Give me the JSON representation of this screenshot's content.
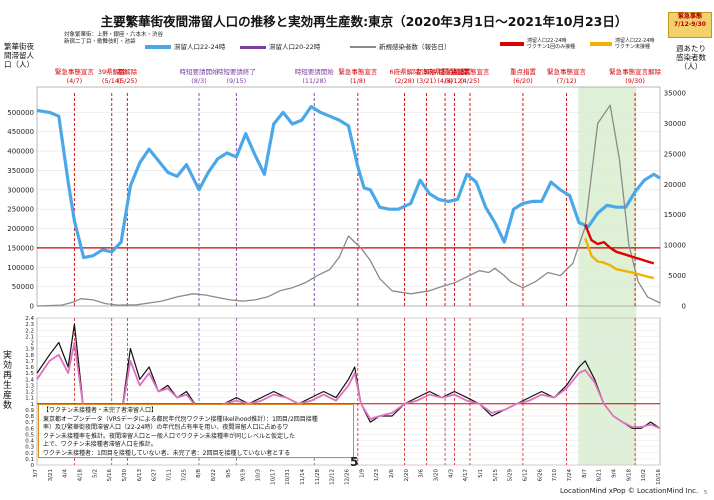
{
  "title": "主要繁華街夜間滞留人口の推移と実効再生産数:東京（2020年3月1日～2021年10月23日）",
  "area_note": [
    "対象繁華街：上野・銀座・六本木・渋谷",
    "新宿二丁目・歌舞伎町・池袋"
  ],
  "emergency_badge": [
    "緊急事態",
    "7/12-9/30"
  ],
  "legend": {
    "stay_22_24": "滞留人口22-24時",
    "stay_20_22": "滞留人口20-22時",
    "new_cases": "新規感染者数（報告日）",
    "unvax_stay": [
      "滞留人口22-24時",
      "ワクチン1回のみ接種"
    ],
    "unvax_stay2": [
      "滞留人口22-24時",
      "ワクチン未接種"
    ]
  },
  "left_axis_label": "繁華街夜間滞留人口（人）",
  "right_axis_label": "週あたり感染者数（人）",
  "rt_axis_label": "実効再生産数",
  "note_box": [
    "【ワクチン未接種者・未完了者滞留人口】",
    "東京都オープンデータ（VRSデータによる都民年代別ワクチン接種likelihood推計）：1回目/2回目接種",
    "率）及び繁華街夜間滞留人口（22-24時）の年代別占有率を用い、夜間滞留人口に占めるワ",
    "クチン未接種率を推計。夜間滞留人口と一般人口でワクチン未接種率が同じレベルと仮定した",
    "上で、ワクチン未接種者滞留人口を推計。",
    "ワクチン未接種者：1回目を接種していない者、未完了者：2回目を接種していない者とする"
  ],
  "slide_number": "5",
  "credit": "LocationMind xPop © LocationMind Inc.",
  "page_index": "5",
  "colors": {
    "stay_22_24": "#4aa8e8",
    "stay_20_22": "#7a3fa0",
    "cases": "#8a8a8a",
    "unvax1": "#e00000",
    "unvax2": "#f2b200",
    "rt_black": "#111111",
    "rt_pink": "#e070c0",
    "threshold": "#d00000",
    "emergency_shade": "#d8efcf"
  },
  "chart_data": [
    {
      "type": "line",
      "title": "主要繁華街夜間滞留人口の推移と実効再生産数:東京（2020年3月1日～2021年10月23日）",
      "x_start_label": "3/7",
      "x_end_label": "10/23",
      "xlabel": "",
      "ylabel": "繁華街夜間滞留人口（人）",
      "ylim": [
        0,
        550000
      ],
      "y_ticks": [
        0,
        50000,
        100000,
        150000,
        200000,
        250000,
        300000,
        350000,
        400000,
        450000,
        500000
      ],
      "y2label": "週あたり感染者数（人）",
      "y2lim": [
        0,
        35000
      ],
      "y2_ticks": [
        0,
        5000,
        10000,
        15000,
        20000,
        25000,
        30000,
        35000
      ],
      "threshold_line": 150000,
      "shaded_period": {
        "from": 0.869,
        "to": 0.962
      },
      "series": [
        {
          "name": "滞留人口22-24時",
          "color_key": "stay_22_24",
          "axis": "left",
          "t": [
            0,
            0.02,
            0.035,
            0.05,
            0.06,
            0.075,
            0.09,
            0.105,
            0.12,
            0.135,
            0.15,
            0.165,
            0.18,
            0.195,
            0.21,
            0.225,
            0.24,
            0.26,
            0.275,
            0.29,
            0.305,
            0.32,
            0.335,
            0.35,
            0.365,
            0.38,
            0.395,
            0.41,
            0.425,
            0.44,
            0.455,
            0.47,
            0.485,
            0.5,
            0.515,
            0.525,
            0.535,
            0.55,
            0.565,
            0.58,
            0.6,
            0.615,
            0.63,
            0.645,
            0.66,
            0.675,
            0.69,
            0.705,
            0.72,
            0.735,
            0.75,
            0.765,
            0.78,
            0.795,
            0.81,
            0.825,
            0.84,
            0.855,
            0.87,
            0.885,
            0.9,
            0.915,
            0.93,
            0.945,
            0.96,
            0.975,
            0.99,
            1.0
          ],
          "values": [
            505000,
            500000,
            490000,
            320000,
            220000,
            125000,
            130000,
            145000,
            140000,
            165000,
            310000,
            370000,
            405000,
            375000,
            345000,
            335000,
            365000,
            300000,
            345000,
            380000,
            395000,
            385000,
            445000,
            390000,
            340000,
            470000,
            500000,
            470000,
            480000,
            515000,
            500000,
            490000,
            480000,
            465000,
            360000,
            305000,
            300000,
            255000,
            250000,
            250000,
            265000,
            325000,
            290000,
            275000,
            270000,
            275000,
            340000,
            320000,
            255000,
            215000,
            165000,
            250000,
            265000,
            270000,
            270000,
            320000,
            300000,
            285000,
            215000,
            205000,
            240000,
            260000,
            255000,
            255000,
            295000,
            325000,
            340000,
            330000
          ]
        },
        {
          "name": "新規感染者数（報告日）",
          "color_key": "cases",
          "axis": "right",
          "t": [
            0,
            0.04,
            0.06,
            0.07,
            0.09,
            0.11,
            0.13,
            0.16,
            0.18,
            0.2,
            0.225,
            0.25,
            0.27,
            0.29,
            0.31,
            0.33,
            0.35,
            0.37,
            0.39,
            0.41,
            0.43,
            0.45,
            0.47,
            0.485,
            0.5,
            0.51,
            0.52,
            0.535,
            0.55,
            0.57,
            0.6,
            0.63,
            0.65,
            0.67,
            0.69,
            0.71,
            0.725,
            0.735,
            0.75,
            0.76,
            0.78,
            0.8,
            0.82,
            0.84,
            0.86,
            0.88,
            0.9,
            0.92,
            0.935,
            0.95,
            0.965,
            0.98,
            1.0
          ],
          "values": [
            0,
            150,
            700,
            1200,
            1000,
            400,
            150,
            200,
            500,
            800,
            1500,
            2000,
            1800,
            1400,
            1000,
            800,
            1000,
            1500,
            2500,
            3000,
            3800,
            5000,
            6000,
            8000,
            11500,
            10500,
            9500,
            7500,
            4500,
            2500,
            2000,
            2500,
            3200,
            3800,
            4800,
            5800,
            5500,
            6200,
            5000,
            4000,
            3000,
            4000,
            5500,
            5000,
            7000,
            13000,
            30000,
            33000,
            24000,
            10000,
            4000,
            1500,
            500
          ]
        },
        {
          "name": "滞留人口22-24時 ワクチン1回のみ接種",
          "color_key": "unvax1",
          "axis": "left",
          "t": [
            0.88,
            0.89,
            0.9,
            0.91,
            0.92,
            0.93,
            0.94,
            0.95,
            0.96,
            0.97,
            0.98,
            0.99
          ],
          "values": [
            210000,
            170000,
            160000,
            165000,
            150000,
            140000,
            135000,
            130000,
            125000,
            120000,
            115000,
            110000
          ]
        },
        {
          "name": "滞留人口22-24時 ワクチン未接種",
          "color_key": "unvax2",
          "axis": "left",
          "t": [
            0.88,
            0.89,
            0.9,
            0.91,
            0.92,
            0.93,
            0.94,
            0.95,
            0.96,
            0.97,
            0.98,
            0.99
          ],
          "values": [
            175000,
            130000,
            115000,
            112000,
            105000,
            95000,
            92000,
            88000,
            85000,
            80000,
            76000,
            72000
          ]
        }
      ],
      "annotations": [
        {
          "t": 0.06,
          "label": "緊急事態宣言",
          "sub": "(4/7)",
          "color": "#d00000"
        },
        {
          "t": 0.12,
          "label": "39県解除",
          "sub": "(5/14)",
          "color": "#d00000"
        },
        {
          "t": 0.145,
          "label": "都解除",
          "sub": "(5/25)",
          "color": "#d00000"
        },
        {
          "t": 0.26,
          "label": "時短要請開始",
          "sub": "(8/3)",
          "color": "#7a3fa0"
        },
        {
          "t": 0.32,
          "label": "時短要請終了",
          "sub": "(9/15)",
          "color": "#7a3fa0"
        },
        {
          "t": 0.445,
          "label": "時短要請開始",
          "sub": "(11/28)",
          "color": "#7a3fa0"
        },
        {
          "t": 0.515,
          "label": "緊急事態宣言",
          "sub": "(1/8)",
          "color": "#d00000"
        },
        {
          "t": 0.59,
          "label": "6府県解除",
          "sub": "(2/28)",
          "color": "#d00000"
        },
        {
          "t": 0.625,
          "label": "都解除",
          "sub": "(3/21)",
          "color": "#d00000"
        },
        {
          "t": 0.655,
          "label": "3府県重点措置",
          "sub": "(4/5)",
          "color": "#d00000"
        },
        {
          "t": 0.67,
          "label": "都重点措置",
          "sub": "(4/12)",
          "color": "#d00000"
        },
        {
          "t": 0.695,
          "label": "緊急事態宣言",
          "sub": "(4/25)",
          "color": "#d00000"
        },
        {
          "t": 0.78,
          "label": "重点措置",
          "sub": "(6/20)",
          "color": "#d00000"
        },
        {
          "t": 0.85,
          "label": "緊急事態宣言",
          "sub": "(7/12)",
          "color": "#d00000"
        },
        {
          "t": 0.96,
          "label": "緊急事態宣言解除",
          "sub": "(9/30)",
          "color": "#d00000"
        }
      ]
    },
    {
      "type": "line",
      "title": "",
      "ylabel": "実効再生産数",
      "ylim": [
        0,
        2.4
      ],
      "y_ticks": [
        0,
        0.1,
        0.2,
        0.3,
        0.4,
        0.5,
        0.6,
        0.7,
        0.8,
        0.9,
        1,
        1.1,
        1.2,
        1.3,
        1.4,
        1.5,
        1.6,
        1.7,
        1.8,
        1.9,
        2,
        2.1,
        2.2,
        2.3,
        2.4
      ],
      "threshold_line": 1.0,
      "x_tick_labels": [
        "3/7",
        "3/21",
        "4/4",
        "4/18",
        "5/2",
        "5/16",
        "5/30",
        "6/13",
        "6/27",
        "7/11",
        "7/25",
        "8/8",
        "8/22",
        "9/5",
        "9/19",
        "10/3",
        "10/17",
        "10/31",
        "11/14",
        "11/28",
        "12/12",
        "12/26",
        "1/9",
        "1/23",
        "2/6",
        "2/20",
        "3/6",
        "3/20",
        "4/3",
        "4/17",
        "5/1",
        "5/15",
        "5/29",
        "6/12",
        "6/26",
        "7/10",
        "7/24",
        "8/7",
        "8/21",
        "9/4",
        "9/18",
        "10/2",
        "10/16"
      ],
      "series": [
        {
          "name": "",
          "color_key": "rt_black",
          "t": [
            0,
            0.02,
            0.035,
            0.05,
            0.06,
            0.075,
            0.09,
            0.105,
            0.12,
            0.135,
            0.15,
            0.165,
            0.18,
            0.195,
            0.21,
            0.225,
            0.24,
            0.26,
            0.28,
            0.3,
            0.32,
            0.34,
            0.36,
            0.38,
            0.4,
            0.42,
            0.44,
            0.46,
            0.48,
            0.5,
            0.51,
            0.52,
            0.535,
            0.55,
            0.57,
            0.59,
            0.61,
            0.63,
            0.65,
            0.67,
            0.69,
            0.71,
            0.73,
            0.75,
            0.77,
            0.79,
            0.81,
            0.83,
            0.85,
            0.87,
            0.88,
            0.895,
            0.91,
            0.925,
            0.94,
            0.955,
            0.97,
            0.985,
            1.0
          ],
          "values": [
            1.5,
            1.8,
            2.0,
            1.6,
            2.3,
            0.9,
            0.4,
            0.3,
            0.5,
            0.8,
            1.9,
            1.4,
            1.6,
            1.2,
            1.3,
            1.1,
            1.2,
            0.9,
            0.8,
            1.0,
            1.1,
            1.0,
            1.1,
            1.2,
            1.1,
            1.0,
            1.1,
            1.2,
            1.1,
            1.4,
            1.6,
            1.0,
            0.7,
            0.8,
            0.8,
            1.0,
            1.1,
            1.2,
            1.1,
            1.2,
            1.1,
            1.0,
            0.8,
            0.9,
            1.0,
            1.1,
            1.2,
            1.1,
            1.3,
            1.6,
            1.7,
            1.4,
            1.0,
            0.8,
            0.7,
            0.6,
            0.6,
            0.7,
            0.6
          ]
        },
        {
          "name": "",
          "color_key": "rt_pink",
          "t": [
            0,
            0.02,
            0.035,
            0.05,
            0.06,
            0.075,
            0.09,
            0.105,
            0.12,
            0.135,
            0.15,
            0.165,
            0.18,
            0.195,
            0.21,
            0.225,
            0.24,
            0.26,
            0.28,
            0.3,
            0.32,
            0.34,
            0.36,
            0.38,
            0.4,
            0.42,
            0.44,
            0.46,
            0.48,
            0.5,
            0.51,
            0.52,
            0.535,
            0.55,
            0.57,
            0.59,
            0.61,
            0.63,
            0.65,
            0.67,
            0.69,
            0.71,
            0.73,
            0.75,
            0.77,
            0.79,
            0.81,
            0.83,
            0.85,
            0.87,
            0.88,
            0.895,
            0.91,
            0.925,
            0.94,
            0.955,
            0.97,
            0.985,
            1.0
          ],
          "values": [
            1.4,
            1.7,
            1.8,
            1.5,
            2.0,
            0.9,
            0.4,
            0.35,
            0.5,
            0.8,
            1.7,
            1.3,
            1.5,
            1.2,
            1.25,
            1.1,
            1.15,
            0.9,
            0.85,
            1.0,
            1.05,
            1.0,
            1.05,
            1.15,
            1.1,
            1.0,
            1.05,
            1.15,
            1.05,
            1.3,
            1.5,
            1.0,
            0.75,
            0.8,
            0.85,
            1.0,
            1.05,
            1.15,
            1.1,
            1.15,
            1.05,
            1.0,
            0.85,
            0.9,
            1.0,
            1.05,
            1.15,
            1.1,
            1.25,
            1.5,
            1.55,
            1.35,
            1.0,
            0.8,
            0.7,
            0.62,
            0.62,
            0.66,
            0.6
          ]
        }
      ]
    }
  ]
}
